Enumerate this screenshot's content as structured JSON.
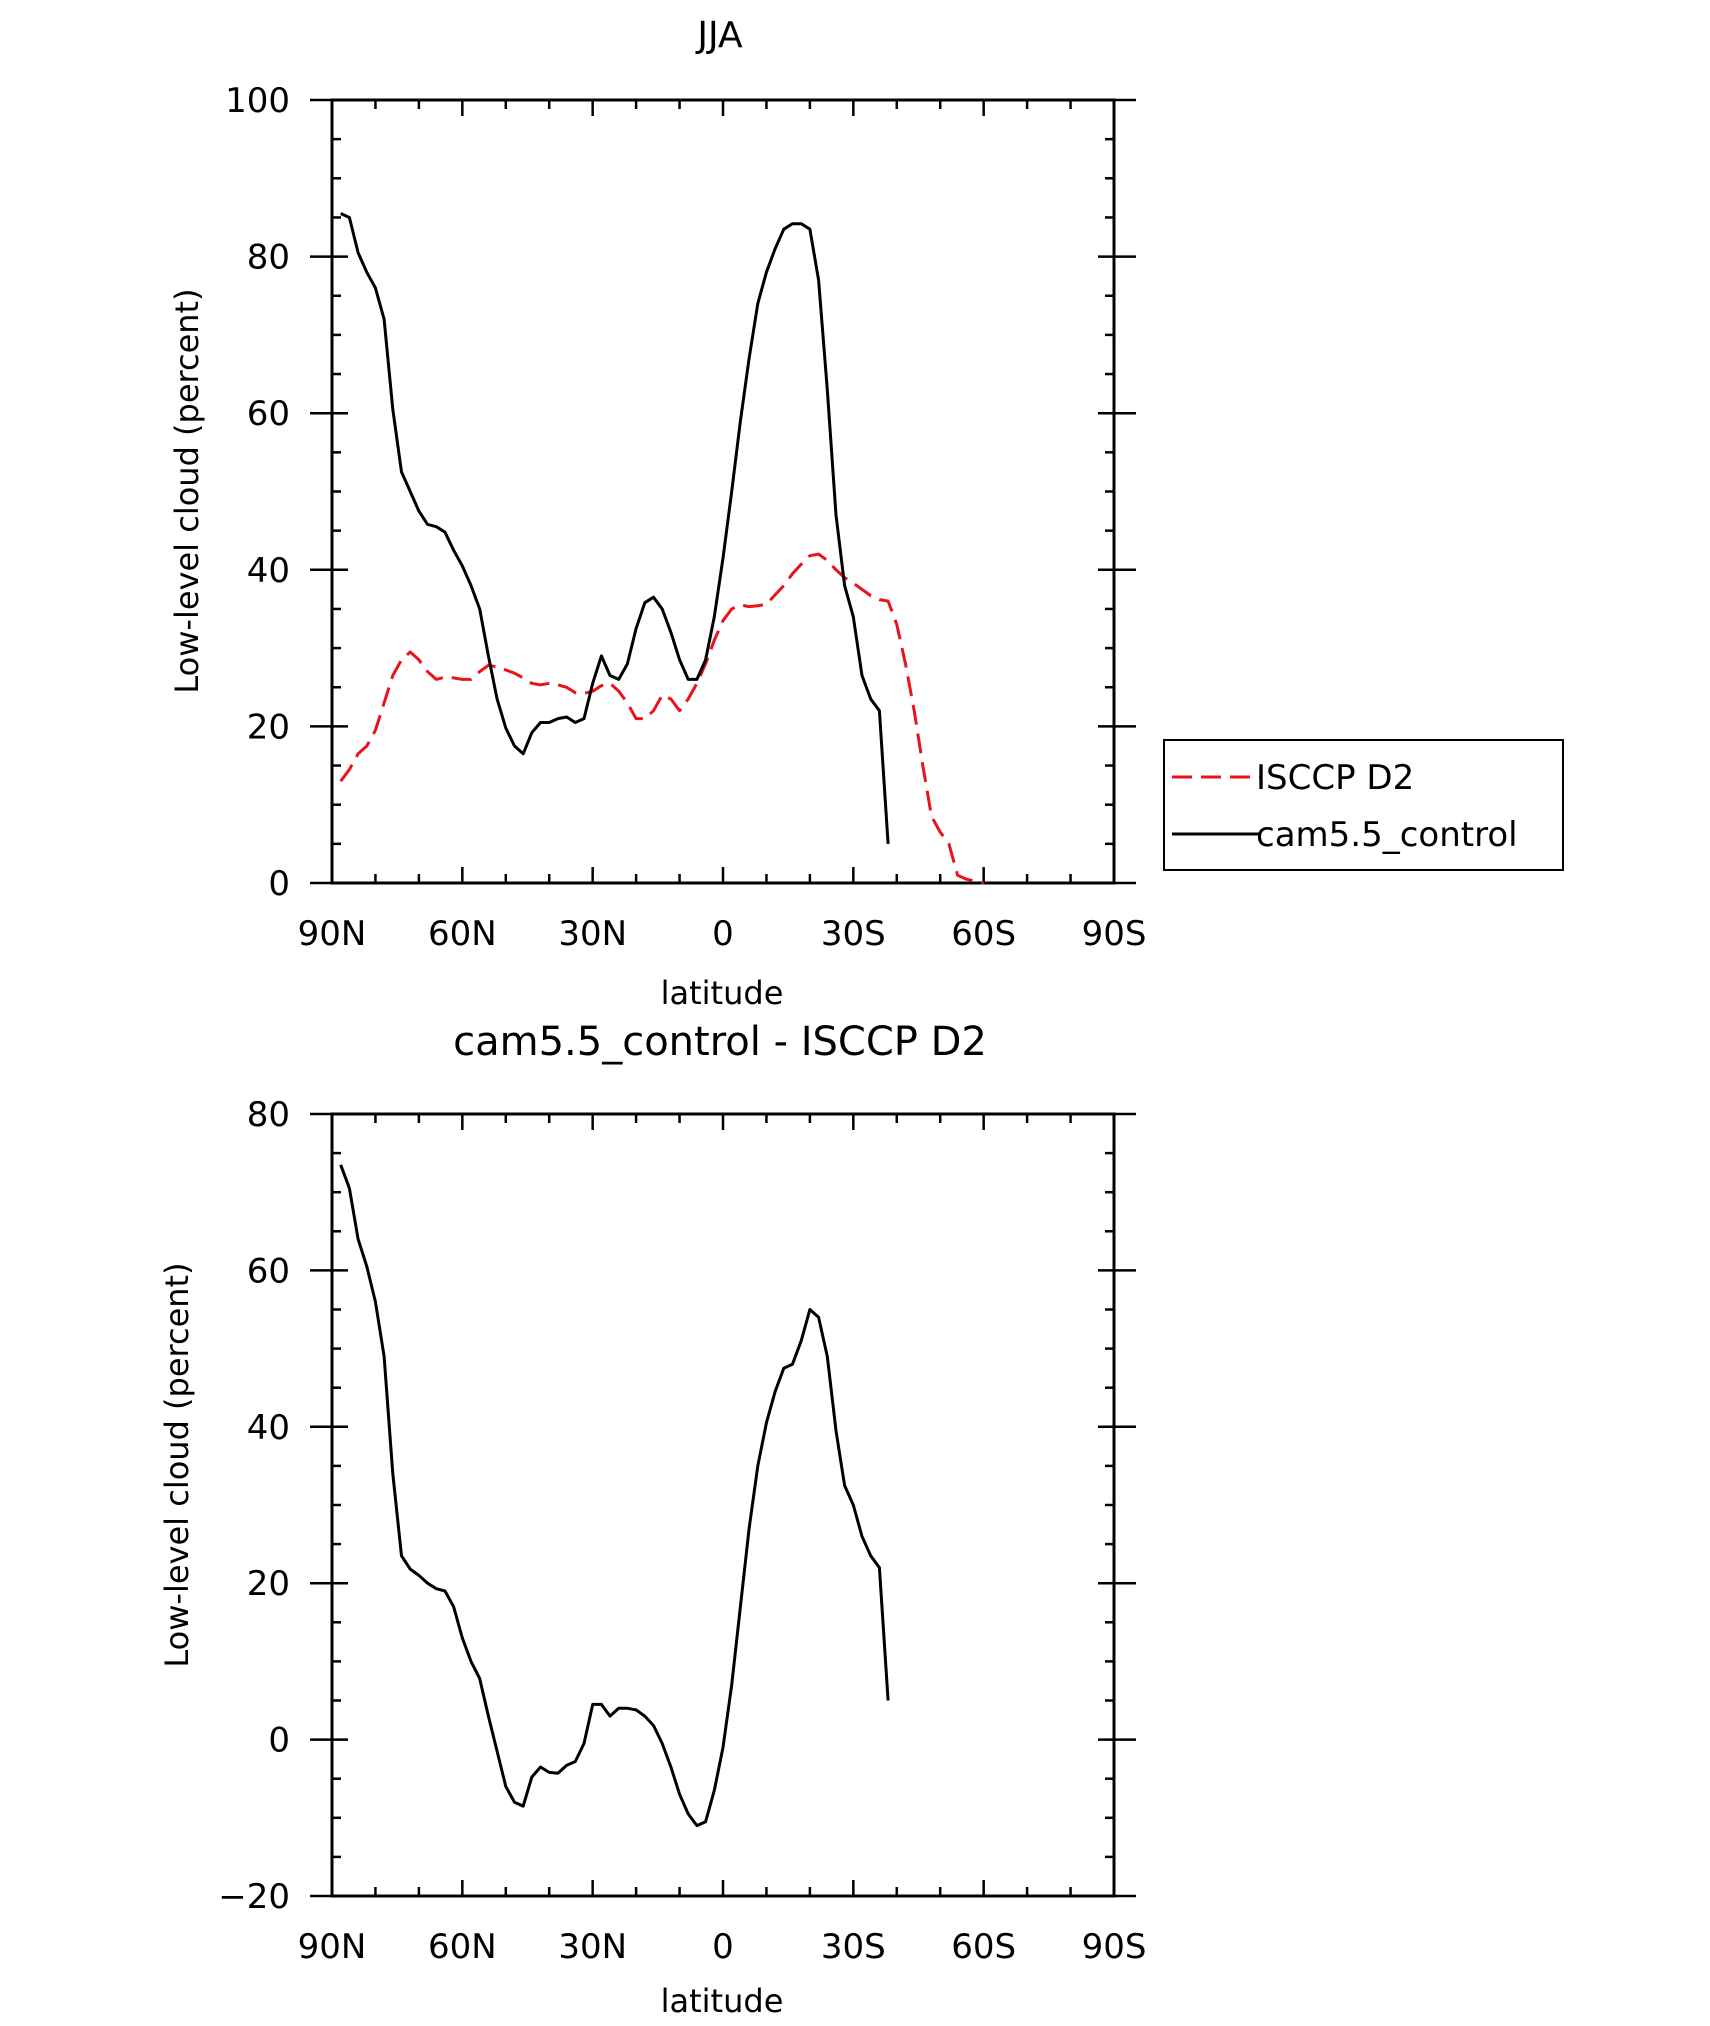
{
  "chart_data": [
    {
      "type": "line",
      "title": "JJA",
      "xlabel": "latitude",
      "ylabel": "Low-level cloud (percent)",
      "xlim": [
        90,
        -90
      ],
      "ylim": [
        0,
        100
      ],
      "xticks": [
        90,
        60,
        30,
        0,
        -30,
        -60,
        -90
      ],
      "xtick_labels": [
        "90N",
        "60N",
        "30N",
        "0",
        "30S",
        "60S",
        "90S"
      ],
      "yticks": [
        0,
        20,
        40,
        60,
        80,
        100
      ],
      "ytick_labels": [
        "0",
        "20",
        "40",
        "60",
        "80",
        "100"
      ],
      "legend_position": "right",
      "series": [
        {
          "name": "ISCCP D2",
          "color": "#e8141c",
          "dash": "dashed",
          "points": [
            [
              88,
              13
            ],
            [
              86,
              14.5
            ],
            [
              84,
              16.5
            ],
            [
              82,
              17.5
            ],
            [
              80,
              19.5
            ],
            [
              78,
              23
            ],
            [
              76,
              26.5
            ],
            [
              74,
              28.5
            ],
            [
              72,
              29.5
            ],
            [
              70,
              28.5
            ],
            [
              68,
              27
            ],
            [
              66,
              26
            ],
            [
              64,
              26.3
            ],
            [
              62,
              26.2
            ],
            [
              60,
              26
            ],
            [
              58,
              26
            ],
            [
              56,
              27
            ],
            [
              54,
              27.8
            ],
            [
              52,
              27.6
            ],
            [
              50,
              27.2
            ],
            [
              48,
              26.8
            ],
            [
              46,
              26.2
            ],
            [
              44,
              25.5
            ],
            [
              42,
              25.3
            ],
            [
              40,
              25.5
            ],
            [
              38,
              25.3
            ],
            [
              36,
              25
            ],
            [
              34,
              24.3
            ],
            [
              32,
              24.2
            ],
            [
              30,
              24.5
            ],
            [
              28,
              25.2
            ],
            [
              26,
              25.5
            ],
            [
              24,
              24.5
            ],
            [
              22,
              23
            ],
            [
              20,
              21
            ],
            [
              18,
              21
            ],
            [
              16,
              22
            ],
            [
              14,
              24
            ],
            [
              12,
              23.5
            ],
            [
              10,
              22
            ],
            [
              8,
              23.5
            ],
            [
              6,
              25.5
            ],
            [
              4,
              28
            ],
            [
              2,
              31
            ],
            [
              0,
              33.5
            ],
            [
              -2,
              35
            ],
            [
              -4,
              35.5
            ],
            [
              -6,
              35.3
            ],
            [
              -8,
              35.4
            ],
            [
              -10,
              35.6
            ],
            [
              -12,
              36.8
            ],
            [
              -14,
              38
            ],
            [
              -16,
              39.5
            ],
            [
              -18,
              40.7
            ],
            [
              -20,
              41.8
            ],
            [
              -22,
              42
            ],
            [
              -24,
              41.2
            ],
            [
              -26,
              40
            ],
            [
              -28,
              39
            ],
            [
              -30,
              38.3
            ],
            [
              -32,
              37.5
            ],
            [
              -34,
              36.7
            ],
            [
              -36,
              36.2
            ],
            [
              -38,
              36
            ],
            [
              -40,
              33
            ],
            [
              -42,
              28
            ],
            [
              -44,
              22
            ],
            [
              -46,
              15
            ],
            [
              -48,
              8.5
            ],
            [
              -50,
              6.5
            ],
            [
              -52,
              5
            ],
            [
              -54,
              1
            ],
            [
              -56,
              0.5
            ],
            [
              -58,
              0.2
            ],
            [
              -60,
              0
            ]
          ]
        },
        {
          "name": "cam5.5_control",
          "color": "#000000",
          "dash": "solid",
          "points": [
            [
              88,
              85.5
            ],
            [
              86,
              85
            ],
            [
              84,
              80.5
            ],
            [
              82,
              78
            ],
            [
              80,
              76
            ],
            [
              78,
              72
            ],
            [
              76,
              60.5
            ],
            [
              74,
              52.5
            ],
            [
              72,
              50
            ],
            [
              70,
              47.5
            ],
            [
              68,
              45.8
            ],
            [
              66,
              45.5
            ],
            [
              64,
              44.8
            ],
            [
              62,
              42.5
            ],
            [
              60,
              40.5
            ],
            [
              58,
              38
            ],
            [
              56,
              35
            ],
            [
              54,
              29
            ],
            [
              52,
              23.5
            ],
            [
              50,
              19.8
            ],
            [
              48,
              17.5
            ],
            [
              46,
              16.5
            ],
            [
              44,
              19.2
            ],
            [
              42,
              20.5
            ],
            [
              40,
              20.5
            ],
            [
              38,
              21
            ],
            [
              36,
              21.2
            ],
            [
              34,
              20.5
            ],
            [
              32,
              21
            ],
            [
              30,
              25.5
            ],
            [
              28,
              29
            ],
            [
              26,
              26.5
            ],
            [
              24,
              26
            ],
            [
              22,
              28
            ],
            [
              20,
              32.5
            ],
            [
              18,
              35.8
            ],
            [
              16,
              36.5
            ],
            [
              14,
              35
            ],
            [
              12,
              32
            ],
            [
              10,
              28.5
            ],
            [
              8,
              26
            ],
            [
              6,
              26
            ],
            [
              4,
              28.5
            ],
            [
              2,
              34
            ],
            [
              0,
              41.5
            ],
            [
              -2,
              50
            ],
            [
              -4,
              59
            ],
            [
              -6,
              67
            ],
            [
              -8,
              74
            ],
            [
              -10,
              78
            ],
            [
              -12,
              81
            ],
            [
              -14,
              83.5
            ],
            [
              -16,
              84.2
            ],
            [
              -18,
              84.2
            ],
            [
              -20,
              83.5
            ],
            [
              -22,
              77
            ],
            [
              -24,
              63
            ],
            [
              -26,
              47
            ],
            [
              -28,
              38
            ],
            [
              -30,
              34
            ],
            [
              -32,
              26.5
            ],
            [
              -34,
              23.5
            ],
            [
              -36,
              22
            ],
            [
              -38,
              5
            ]
          ]
        }
      ]
    },
    {
      "type": "line",
      "title": "cam5.5_control - ISCCP D2",
      "xlabel": "latitude",
      "ylabel": "Low-level cloud (percent)",
      "xlim": [
        90,
        -90
      ],
      "ylim": [
        -20,
        80
      ],
      "xticks": [
        90,
        60,
        30,
        0,
        -30,
        -60,
        -90
      ],
      "xtick_labels": [
        "90N",
        "60N",
        "30N",
        "0",
        "30S",
        "60S",
        "90S"
      ],
      "yticks": [
        -20,
        0,
        20,
        40,
        60,
        80
      ],
      "ytick_labels": [
        "−20",
        "0",
        "20",
        "40",
        "60",
        "80"
      ],
      "series": [
        {
          "color": "#000000",
          "dash": "solid",
          "points": [
            [
              88,
              73.5
            ],
            [
              86,
              70.5
            ],
            [
              84,
              64
            ],
            [
              82,
              60.5
            ],
            [
              80,
              56
            ],
            [
              78,
              49
            ],
            [
              76,
              34
            ],
            [
              74,
              23.5
            ],
            [
              72,
              21.8
            ],
            [
              70,
              21
            ],
            [
              68,
              20
            ],
            [
              66,
              19.3
            ],
            [
              64,
              19
            ],
            [
              62,
              17
            ],
            [
              60,
              13
            ],
            [
              58,
              10
            ],
            [
              56,
              7.8
            ],
            [
              54,
              3
            ],
            [
              52,
              -1.5
            ],
            [
              50,
              -6
            ],
            [
              48,
              -8
            ],
            [
              46,
              -8.5
            ],
            [
              44,
              -4.8
            ],
            [
              42,
              -3.5
            ],
            [
              40,
              -4.2
            ],
            [
              38,
              -4.3
            ],
            [
              36,
              -3.3
            ],
            [
              34,
              -2.8
            ],
            [
              32,
              -0.5
            ],
            [
              30,
              4.5
            ],
            [
              28,
              4.5
            ],
            [
              26,
              3
            ],
            [
              24,
              4
            ],
            [
              22,
              4
            ],
            [
              20,
              3.8
            ],
            [
              18,
              3
            ],
            [
              16,
              1.8
            ],
            [
              14,
              -0.5
            ],
            [
              12,
              -3.5
            ],
            [
              10,
              -7
            ],
            [
              8,
              -9.5
            ],
            [
              6,
              -11
            ],
            [
              4,
              -10.5
            ],
            [
              2,
              -6.5
            ],
            [
              0,
              -1
            ],
            [
              -2,
              7
            ],
            [
              -4,
              17
            ],
            [
              -6,
              27
            ],
            [
              -8,
              35
            ],
            [
              -10,
              40.5
            ],
            [
              -12,
              44.5
            ],
            [
              -14,
              47.5
            ],
            [
              -16,
              48
            ],
            [
              -18,
              51
            ],
            [
              -20,
              55
            ],
            [
              -22,
              54
            ],
            [
              -24,
              49
            ],
            [
              -26,
              39.5
            ],
            [
              -28,
              32.5
            ],
            [
              -30,
              30
            ],
            [
              -32,
              26
            ],
            [
              -34,
              23.5
            ],
            [
              -36,
              22
            ],
            [
              -38,
              5
            ]
          ]
        }
      ]
    }
  ]
}
